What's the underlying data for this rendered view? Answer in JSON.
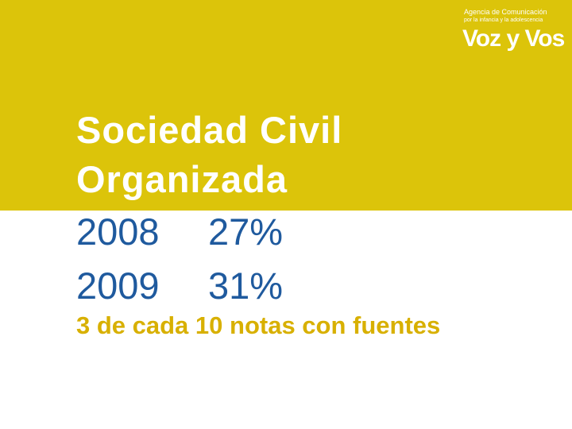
{
  "logo": {
    "line1": "Agencia de Comunicación",
    "line2": "por la infancia y la adolescencia",
    "brand": "Voz y Vos"
  },
  "title": {
    "lines": [
      "Sociedad Civil",
      "Organizada"
    ]
  },
  "rows": [
    {
      "year": "2008",
      "percent": "27%"
    },
    {
      "year": "2009",
      "percent": "31%"
    }
  ],
  "note": "3 de cada 10 notas con fuentes"
}
